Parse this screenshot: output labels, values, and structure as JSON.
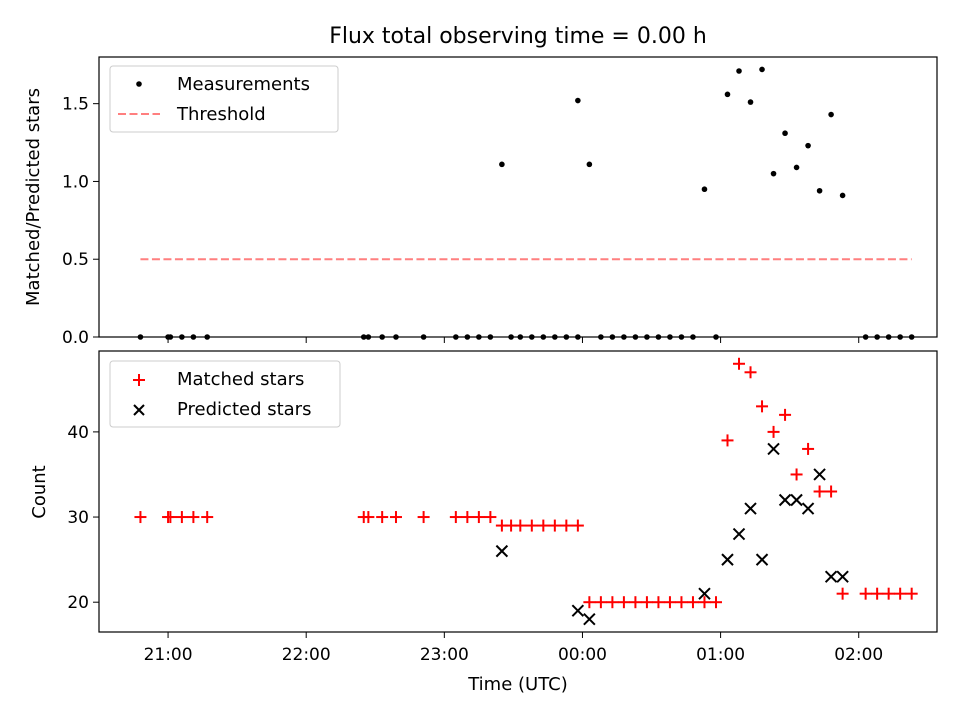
{
  "chart_data": [
    {
      "type": "scatter",
      "title": "Flux total observing time = 0.00 h",
      "ylabel": "Matched/Predicted stars",
      "xlabel": "",
      "xlim": [
        "20:30",
        "02:34"
      ],
      "ylim": [
        0,
        1.8
      ],
      "yticks": [
        "0.0",
        "0.5",
        "1.0",
        "1.5"
      ],
      "legend_position": "upper-left",
      "series": [
        {
          "name": "Measurements",
          "color": "#000000",
          "marker": "dot",
          "x": [
            "20:48",
            "21:00",
            "21:01",
            "21:06",
            "21:11",
            "21:17",
            "22:25",
            "22:27",
            "22:33",
            "22:39",
            "22:51",
            "23:05",
            "23:10",
            "23:15",
            "23:20",
            "23:25",
            "23:29",
            "23:33",
            "23:38",
            "23:43",
            "23:48",
            "23:53",
            "23:58",
            "23:58",
            "00:03",
            "00:08",
            "00:13",
            "00:18",
            "00:23",
            "00:28",
            "00:33",
            "00:38",
            "00:43",
            "00:48",
            "00:53",
            "00:58",
            "01:03",
            "01:08",
            "01:13",
            "01:18",
            "01:23",
            "01:28",
            "01:33",
            "01:38",
            "01:43",
            "01:48",
            "01:53",
            "02:03",
            "02:08",
            "02:13",
            "02:18",
            "02:23"
          ],
          "y": [
            0,
            0,
            0,
            0,
            0,
            0,
            0,
            0,
            0,
            0,
            0,
            0,
            0,
            0,
            0,
            1.11,
            0,
            0,
            0,
            0,
            0,
            0,
            1.52,
            0,
            1.11,
            0,
            0,
            0,
            0,
            0,
            0,
            0,
            0,
            0,
            0.95,
            0,
            1.56,
            1.71,
            1.51,
            1.72,
            1.05,
            1.31,
            1.09,
            1.23,
            0.94,
            1.43,
            0.91,
            0,
            0,
            0,
            0,
            0
          ]
        },
        {
          "name": "Threshold",
          "color": "#ff7f7f",
          "style": "dashed",
          "x": [
            "20:48",
            "02:23"
          ],
          "y": [
            0.5,
            0.5
          ]
        }
      ]
    },
    {
      "type": "scatter",
      "xlabel": "Time (UTC)",
      "ylabel": "Count",
      "xlim": [
        "20:30",
        "02:34"
      ],
      "ylim": [
        16.5,
        49.5
      ],
      "xticks": [
        "21:00",
        "22:00",
        "23:00",
        "00:00",
        "01:00",
        "02:00"
      ],
      "yticks": [
        "20",
        "30",
        "40"
      ],
      "legend_position": "upper-left",
      "series": [
        {
          "name": "Matched stars",
          "color": "#ff0000",
          "marker": "plus",
          "x": [
            "20:48",
            "21:00",
            "21:01",
            "21:06",
            "21:11",
            "21:17",
            "22:25",
            "22:27",
            "22:33",
            "22:39",
            "22:51",
            "23:05",
            "23:10",
            "23:15",
            "23:20",
            "23:25",
            "23:29",
            "23:33",
            "23:38",
            "23:43",
            "23:48",
            "23:53",
            "23:58",
            "00:03",
            "00:08",
            "00:13",
            "00:18",
            "00:23",
            "00:28",
            "00:33",
            "00:38",
            "00:43",
            "00:48",
            "00:53",
            "00:58",
            "01:03",
            "01:08",
            "01:13",
            "01:18",
            "01:23",
            "01:28",
            "01:33",
            "01:38",
            "01:43",
            "01:48",
            "01:53",
            "02:03",
            "02:08",
            "02:13",
            "02:18",
            "02:23"
          ],
          "y": [
            30,
            30,
            30,
            30,
            30,
            30,
            30,
            30,
            30,
            30,
            30,
            30,
            30,
            30,
            30,
            29,
            29,
            29,
            29,
            29,
            29,
            29,
            29,
            20,
            20,
            20,
            20,
            20,
            20,
            20,
            20,
            20,
            20,
            20,
            20,
            39,
            48,
            47,
            43,
            40,
            42,
            35,
            38,
            33,
            33,
            21,
            21,
            21,
            21,
            21,
            21
          ]
        },
        {
          "name": "Predicted stars",
          "color": "#000000",
          "marker": "x",
          "x": [
            "23:25",
            "23:58",
            "00:03",
            "00:53",
            "01:03",
            "01:08",
            "01:13",
            "01:18",
            "01:23",
            "01:28",
            "01:33",
            "01:38",
            "01:43",
            "01:48",
            "01:53"
          ],
          "y": [
            26,
            19,
            18,
            21,
            25,
            28,
            31,
            25,
            38,
            32,
            32,
            31,
            35,
            23,
            23
          ]
        }
      ]
    }
  ]
}
